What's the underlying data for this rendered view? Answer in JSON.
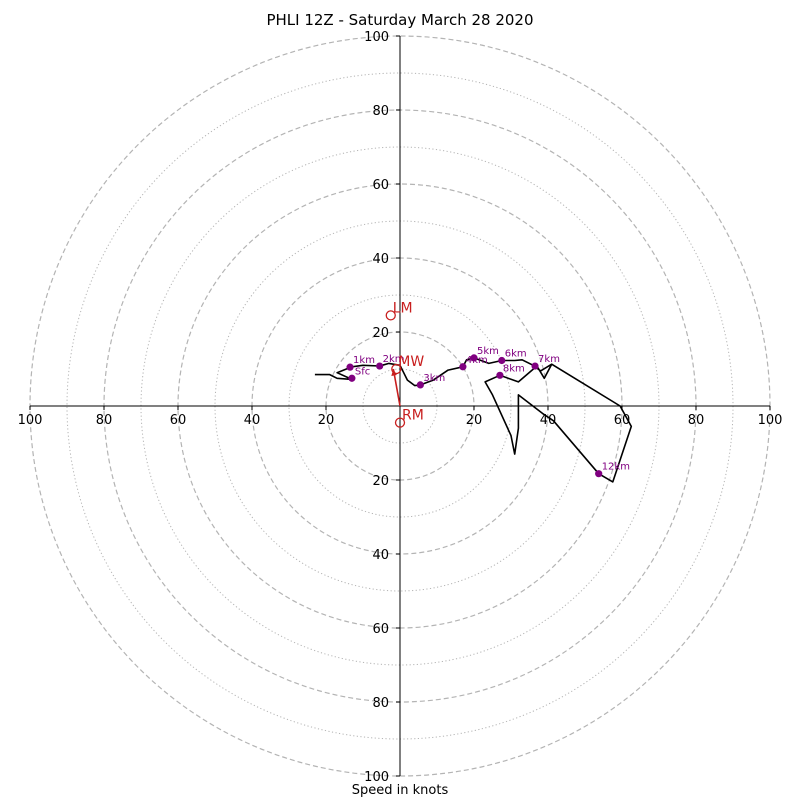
{
  "chart_data": {
    "type": "hodograph",
    "title": "PHLI 12Z - Saturday March 28 2020",
    "xlabel": "Speed in knots",
    "rings_dashed": [
      20,
      40,
      60,
      80,
      100
    ],
    "rings_dotted": [
      10,
      30,
      50,
      70,
      90
    ],
    "axis_ticks": [
      20,
      40,
      60,
      80,
      100
    ],
    "max_speed": 100,
    "hodograph_trace": [
      [
        -23,
        8.5
      ],
      [
        -19,
        8.5
      ],
      [
        -17,
        7.5
      ],
      [
        -13,
        7.2
      ],
      [
        -17,
        9
      ],
      [
        -13,
        10.6
      ],
      [
        -10,
        11
      ],
      [
        -5.5,
        10.8
      ],
      [
        -3,
        11.5
      ],
      [
        0,
        11
      ],
      [
        1,
        9
      ],
      [
        2,
        7
      ],
      [
        4,
        5.5
      ],
      [
        5.5,
        5.7
      ],
      [
        9,
        7
      ],
      [
        13,
        9.7
      ],
      [
        17,
        10.6
      ],
      [
        18,
        12.5
      ],
      [
        20,
        13
      ],
      [
        24,
        11.5
      ],
      [
        27.5,
        12.3
      ],
      [
        31,
        12.3
      ],
      [
        33,
        12.5
      ],
      [
        36,
        11
      ],
      [
        38,
        9.5
      ],
      [
        41,
        11.3
      ],
      [
        59.5,
        0
      ],
      [
        62.5,
        -5.5
      ],
      [
        57.5,
        -20.5
      ],
      [
        53.7,
        -18.3
      ],
      [
        41.5,
        -4
      ],
      [
        38.5,
        -2
      ],
      [
        32,
        3
      ],
      [
        32,
        -6
      ],
      [
        31,
        -13
      ],
      [
        30,
        -8
      ],
      [
        25,
        3
      ],
      [
        23,
        6.5
      ],
      [
        27,
        8.3
      ],
      [
        32,
        6.5
      ],
      [
        37,
        10.8
      ],
      [
        39,
        7.5
      ],
      [
        41,
        11.3
      ]
    ],
    "height_markers": [
      {
        "label": "Sfc",
        "u": -13,
        "v": 7.5
      },
      {
        "label": "1km",
        "u": -13.5,
        "v": 10.5
      },
      {
        "label": "2km",
        "u": -5.5,
        "v": 10.8
      },
      {
        "label": "3km",
        "u": 5.5,
        "v": 5.7
      },
      {
        "label": "4km",
        "u": 17,
        "v": 10.6
      },
      {
        "label": "5km",
        "u": 20,
        "v": 13
      },
      {
        "label": "6km",
        "u": 27.5,
        "v": 12.3
      },
      {
        "label": "7km",
        "u": 36.5,
        "v": 10.8
      },
      {
        "label": "8km",
        "u": 27,
        "v": 8.3
      },
      {
        "label": "12km",
        "u": 53.7,
        "v": -18.3
      }
    ],
    "storm_motion": [
      {
        "label": "LM",
        "u": -2.5,
        "v": 24.5
      },
      {
        "label": "MW",
        "u": -1,
        "v": 10
      },
      {
        "label": "RM",
        "u": 0,
        "v": -4.5
      }
    ],
    "shear_vector": {
      "u0": 0,
      "v0": 0,
      "u1": -1.8,
      "v1": 10
    },
    "colors": {
      "trace": "#000000",
      "markers": "#800080",
      "storm_motion": "#c81e1e",
      "grid": "#b4b4b4"
    }
  }
}
